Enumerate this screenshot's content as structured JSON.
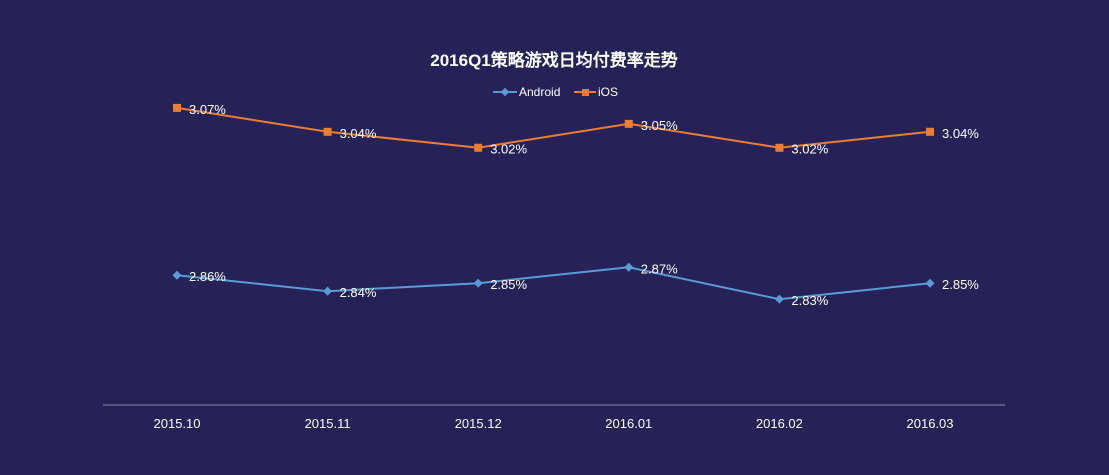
{
  "chart_data": {
    "type": "line",
    "title": "2016Q1策略游戏日均付费率走势",
    "xlabel": "",
    "ylabel": "",
    "categories": [
      "2015.10",
      "2015.11",
      "2015.12",
      "2016.01",
      "2016.02",
      "2016.03"
    ],
    "ylim": [
      2.75,
      3.1
    ],
    "grid": false,
    "legend_position": "top",
    "value_suffix": "%",
    "series": [
      {
        "name": "Android",
        "color": "#5b9bd5",
        "marker": "diamond",
        "values": [
          2.86,
          2.84,
          2.85,
          2.87,
          2.83,
          2.85
        ],
        "labels": [
          "2.86%",
          "2.84%",
          "2.85%",
          "2.87%",
          "2.83%",
          "2.85%"
        ]
      },
      {
        "name": "iOS",
        "color": "#ed7d31",
        "marker": "square",
        "values": [
          3.07,
          3.04,
          3.02,
          3.05,
          3.02,
          3.04
        ],
        "labels": [
          "3.07%",
          "3.04%",
          "3.02%",
          "3.05%",
          "3.02%",
          "3.04%"
        ]
      }
    ]
  }
}
